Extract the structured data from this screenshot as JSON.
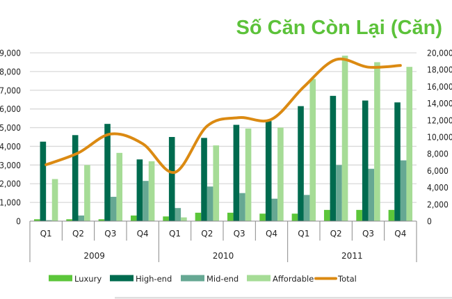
{
  "chart_data": {
    "type": "bar",
    "title": "Số Căn Còn Lại (Căn)",
    "xlabel": "",
    "ylabel": "",
    "categories": [
      "Q1",
      "Q2",
      "Q3",
      "Q4",
      "Q1",
      "Q2",
      "Q3",
      "Q4",
      "Q1",
      "Q2",
      "Q3",
      "Q4"
    ],
    "category_groups": [
      {
        "label": "2009",
        "span": 4
      },
      {
        "label": "2010",
        "span": 4
      },
      {
        "label": "2011",
        "span": 4
      }
    ],
    "ylim": [
      0,
      9000
    ],
    "y_ticks": [
      "0",
      "1,000",
      "2,000",
      "3,000",
      "4,000",
      "5,000",
      "6,000",
      "7,000",
      "8,000",
      "9,000"
    ],
    "y2lim": [
      0,
      20000
    ],
    "y2_ticks": [
      "0",
      "2,000",
      "4,000",
      "6,000",
      "8,000",
      "10,000",
      "12,000",
      "14,000",
      "16,000",
      "18,000",
      "20,000"
    ],
    "grid": true,
    "legend_position": "bottom",
    "series": [
      {
        "name": "Luxury",
        "type": "bar",
        "axis": "left",
        "color": "#5cc63a",
        "values": [
          100,
          100,
          100,
          300,
          250,
          450,
          450,
          400,
          400,
          600,
          600,
          600
        ]
      },
      {
        "name": "High-end",
        "type": "bar",
        "axis": "left",
        "color": "#006b4f",
        "values": [
          4250,
          4600,
          5200,
          3300,
          4500,
          4450,
          5150,
          5350,
          6150,
          6700,
          6450,
          6350
        ]
      },
      {
        "name": "Mid-end",
        "type": "bar",
        "axis": "left",
        "color": "#66a893",
        "values": [
          50,
          300,
          1300,
          2150,
          700,
          1850,
          1500,
          1200,
          1400,
          3000,
          2800,
          3250
        ]
      },
      {
        "name": "Affordable",
        "type": "bar",
        "axis": "left",
        "color": "#a6dc96",
        "values": [
          2250,
          3000,
          3650,
          3200,
          200,
          4050,
          4950,
          5000,
          7600,
          8850,
          8500,
          8250
        ]
      },
      {
        "name": "Total",
        "type": "line",
        "axis": "right",
        "color": "#db8a12",
        "values": [
          6700,
          8100,
          10350,
          9200,
          5800,
          11300,
          12300,
          12100,
          15950,
          19200,
          18300,
          18500
        ]
      }
    ]
  }
}
